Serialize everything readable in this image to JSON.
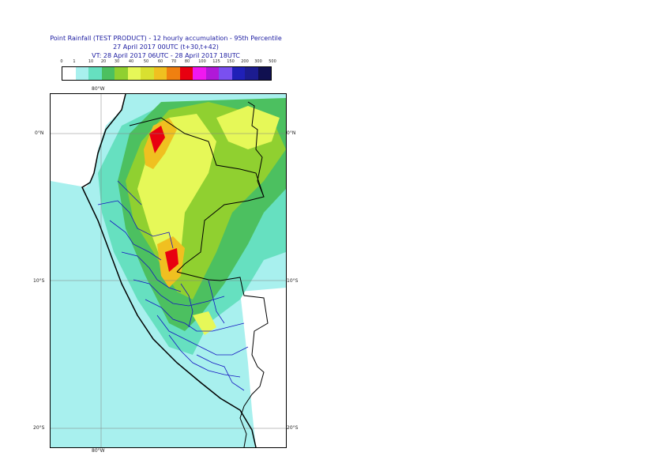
{
  "title": {
    "line1": "Point Rainfall (TEST PRODUCT) - 12 hourly accumulation - 95th Percentile",
    "line2": "27 April 2017 00UTC (t+30,t+42)",
    "line3": "VT: 28 April 2017 06UTC - 28 April 2017 18UTC"
  },
  "legend": {
    "ticks": [
      "0",
      "1",
      "10",
      "20",
      "30",
      "40",
      "50",
      "60",
      "70",
      "80",
      "100",
      "125",
      "150",
      "200",
      "300",
      "500"
    ],
    "colors": [
      "#ffffff",
      "#a8f0ee",
      "#66e0c0",
      "#4cc060",
      "#90d030",
      "#e6f858",
      "#d8e030",
      "#f0c020",
      "#f08010",
      "#e80010",
      "#f018f0",
      "#b018d8",
      "#7a50f0",
      "#2020b8",
      "#1c1c90",
      "#101050"
    ]
  },
  "map": {
    "lat_labels_left": [
      "0°N",
      "10°S",
      "20°S"
    ],
    "lat_labels_right": [
      "0°N",
      "10°S",
      "20°S"
    ],
    "lon_label_top": "80°W",
    "lon_label_bottom": "80°W"
  }
}
